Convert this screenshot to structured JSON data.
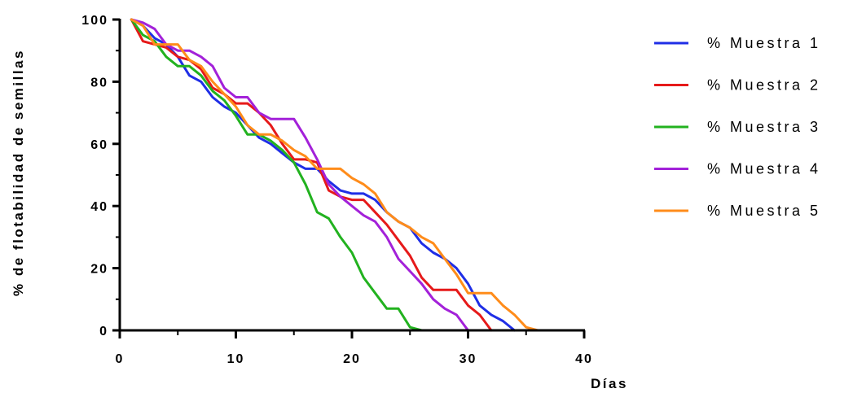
{
  "chart_data": {
    "type": "line",
    "title": "",
    "xlabel": "Días",
    "ylabel": "% de flotabilidad de semillas",
    "xlim": [
      0,
      40
    ],
    "ylim": [
      0,
      100
    ],
    "xticks": [
      "0",
      "10",
      "20",
      "30",
      "40"
    ],
    "yticks": [
      "0",
      "20",
      "40",
      "60",
      "80",
      "100"
    ],
    "grid": false,
    "legend_position": "right",
    "series": [
      {
        "name": "% Muestra 1",
        "color": "#1f2ee6",
        "x": [
          1,
          2,
          3,
          4,
          5,
          6,
          7,
          8,
          9,
          10,
          11,
          12,
          13,
          14,
          15,
          16,
          17,
          18,
          19,
          20,
          21,
          22,
          23,
          24,
          25,
          26,
          27,
          28,
          29,
          30,
          31,
          32,
          33,
          34
        ],
        "y": [
          100,
          98,
          94,
          92,
          88,
          82,
          80,
          75,
          72,
          70,
          66,
          62,
          60,
          57,
          54,
          52,
          52,
          48,
          45,
          44,
          44,
          42,
          38,
          35,
          33,
          28,
          25,
          23,
          20,
          15,
          8,
          5,
          3,
          0
        ]
      },
      {
        "name": "% Muestra 2",
        "color": "#e61a1a",
        "x": [
          1,
          2,
          3,
          4,
          5,
          6,
          7,
          8,
          9,
          10,
          11,
          12,
          13,
          14,
          15,
          16,
          17,
          18,
          19,
          20,
          21,
          22,
          23,
          24,
          25,
          26,
          27,
          28,
          29,
          30,
          31,
          32
        ],
        "y": [
          100,
          93,
          92,
          91,
          88,
          87,
          84,
          78,
          76,
          73,
          73,
          70,
          66,
          60,
          55,
          55,
          54,
          45,
          43,
          42,
          42,
          38,
          34,
          29,
          24,
          17,
          13,
          13,
          13,
          8,
          5,
          0
        ]
      },
      {
        "name": "% Muestra 3",
        "color": "#22b21f",
        "x": [
          1,
          2,
          3,
          4,
          5,
          6,
          7,
          8,
          9,
          10,
          11,
          12,
          13,
          14,
          15,
          16,
          17,
          18,
          19,
          20,
          21,
          22,
          23,
          24,
          25,
          26
        ],
        "y": [
          100,
          95,
          93,
          88,
          85,
          85,
          82,
          77,
          74,
          69,
          63,
          63,
          61,
          58,
          54,
          47,
          38,
          36,
          30,
          25,
          17,
          12,
          7,
          7,
          1,
          0
        ]
      },
      {
        "name": "% Muestra 4",
        "color": "#a321d9",
        "x": [
          1,
          2,
          3,
          4,
          5,
          6,
          7,
          8,
          9,
          10,
          11,
          12,
          13,
          14,
          15,
          16,
          17,
          18,
          19,
          20,
          21,
          22,
          23,
          24,
          25,
          26,
          27,
          28,
          29,
          30
        ],
        "y": [
          100,
          99,
          97,
          92,
          90,
          90,
          88,
          85,
          78,
          75,
          75,
          70,
          68,
          68,
          68,
          62,
          55,
          47,
          43,
          40,
          37,
          35,
          30,
          23,
          19,
          15,
          10,
          7,
          5,
          0
        ]
      },
      {
        "name": "% Muestra 5",
        "color": "#ff8c1a",
        "x": [
          1,
          2,
          3,
          4,
          5,
          6,
          7,
          8,
          9,
          10,
          11,
          12,
          13,
          14,
          15,
          16,
          17,
          18,
          19,
          20,
          21,
          22,
          23,
          24,
          25,
          26,
          27,
          28,
          29,
          30,
          31,
          32,
          33,
          34,
          35,
          36
        ],
        "y": [
          100,
          98,
          92,
          92,
          92,
          87,
          85,
          80,
          76,
          72,
          66,
          63,
          63,
          61,
          58,
          56,
          52,
          52,
          52,
          49,
          47,
          44,
          38,
          35,
          33,
          30,
          28,
          23,
          18,
          12,
          12,
          12,
          8,
          5,
          1,
          0
        ]
      }
    ]
  }
}
